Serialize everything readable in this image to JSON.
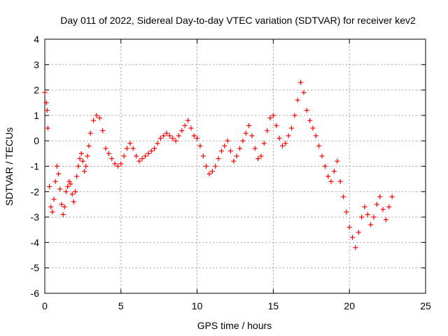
{
  "chart_data": {
    "type": "scatter",
    "title": "Day 011 of 2022, Sidereal Day-to-day VTEC variation (SDTVAR) for receiver kev2",
    "xlabel": "GPS time / hours",
    "ylabel": "SDTVAR / TECUs",
    "xlim": [
      0,
      25
    ],
    "ylim": [
      -6,
      4
    ],
    "xticks": [
      0,
      5,
      10,
      15,
      20,
      25
    ],
    "yticks": [
      -6,
      -5,
      -4,
      -3,
      -2,
      -1,
      0,
      1,
      2,
      3,
      4
    ],
    "xtick_labels": [
      "0",
      "5",
      "10",
      "15",
      "20",
      "25"
    ],
    "ytick_labels": [
      "-6",
      "-5",
      "-4",
      "-3",
      "-2",
      "-1",
      "0",
      "1",
      "2",
      "3",
      "4"
    ],
    "grid": true,
    "marker": "+",
    "marker_color": "#ff0000",
    "series": [
      {
        "name": "SDTVAR",
        "x": [
          0.0,
          0.1,
          0.15,
          0.2,
          0.3,
          0.4,
          0.5,
          0.6,
          0.7,
          0.8,
          0.9,
          1.0,
          1.1,
          1.2,
          1.3,
          1.4,
          1.5,
          1.6,
          1.7,
          1.8,
          1.9,
          2.0,
          2.1,
          2.2,
          2.3,
          2.4,
          2.5,
          2.6,
          2.7,
          2.8,
          2.9,
          3.0,
          3.2,
          3.4,
          3.6,
          3.8,
          4.0,
          4.2,
          4.4,
          4.6,
          4.8,
          5.0,
          5.2,
          5.4,
          5.6,
          5.8,
          6.0,
          6.2,
          6.4,
          6.6,
          6.8,
          7.0,
          7.2,
          7.4,
          7.6,
          7.8,
          8.0,
          8.2,
          8.4,
          8.6,
          8.8,
          9.0,
          9.2,
          9.4,
          9.6,
          9.8,
          10.0,
          10.2,
          10.4,
          10.6,
          10.8,
          11.0,
          11.2,
          11.4,
          11.6,
          11.8,
          12.0,
          12.2,
          12.4,
          12.6,
          12.8,
          13.0,
          13.2,
          13.4,
          13.6,
          13.8,
          14.0,
          14.2,
          14.4,
          14.6,
          14.8,
          15.0,
          15.2,
          15.4,
          15.6,
          15.8,
          16.0,
          16.2,
          16.4,
          16.6,
          16.8,
          17.0,
          17.2,
          17.4,
          17.6,
          17.8,
          18.0,
          18.2,
          18.4,
          18.6,
          18.8,
          19.0,
          19.2,
          19.4,
          19.6,
          19.8,
          20.0,
          20.2,
          20.4,
          20.6,
          20.8,
          21.0,
          21.2,
          21.4,
          21.6,
          21.8,
          22.0,
          22.2,
          22.4,
          22.6,
          22.8
        ],
        "y": [
          1.9,
          1.5,
          1.2,
          0.5,
          -1.8,
          -2.6,
          -2.8,
          -2.3,
          -1.6,
          -1.0,
          -1.3,
          -1.9,
          -2.5,
          -2.9,
          -2.6,
          -2.0,
          -1.8,
          -1.6,
          -1.7,
          -2.1,
          -2.4,
          -2.0,
          -1.4,
          -1.0,
          -0.7,
          -0.5,
          -0.8,
          -1.2,
          -1.0,
          -0.6,
          -0.2,
          0.3,
          0.8,
          1.0,
          0.9,
          0.4,
          -0.3,
          -0.5,
          -0.7,
          -0.9,
          -1.0,
          -0.9,
          -0.6,
          -0.3,
          -0.1,
          -0.3,
          -0.6,
          -0.8,
          -0.7,
          -0.6,
          -0.5,
          -0.4,
          -0.3,
          -0.1,
          0.1,
          0.2,
          0.3,
          0.2,
          0.1,
          0.0,
          0.2,
          0.4,
          0.6,
          0.8,
          0.5,
          0.2,
          0.1,
          -0.2,
          -0.6,
          -1.0,
          -1.3,
          -1.2,
          -1.0,
          -0.7,
          -0.4,
          -0.2,
          0.0,
          -0.4,
          -0.8,
          -0.6,
          -0.3,
          0.0,
          0.3,
          0.6,
          0.2,
          -0.3,
          -0.7,
          -0.6,
          -0.1,
          0.4,
          0.9,
          1.0,
          0.6,
          0.1,
          -0.2,
          -0.1,
          0.2,
          0.5,
          1.0,
          1.6,
          2.3,
          1.9,
          1.2,
          0.8,
          0.5,
          0.2,
          -0.2,
          -0.6,
          -1.0,
          -1.4,
          -1.6,
          -1.2,
          -0.8,
          -1.6,
          -2.2,
          -2.8,
          -3.4,
          -3.8,
          -4.2,
          -3.6,
          -3.0,
          -2.6,
          -2.9,
          -3.3,
          -3.0,
          -2.5,
          -2.2,
          -2.7,
          -3.1,
          -2.6,
          -2.2
        ]
      }
    ]
  }
}
